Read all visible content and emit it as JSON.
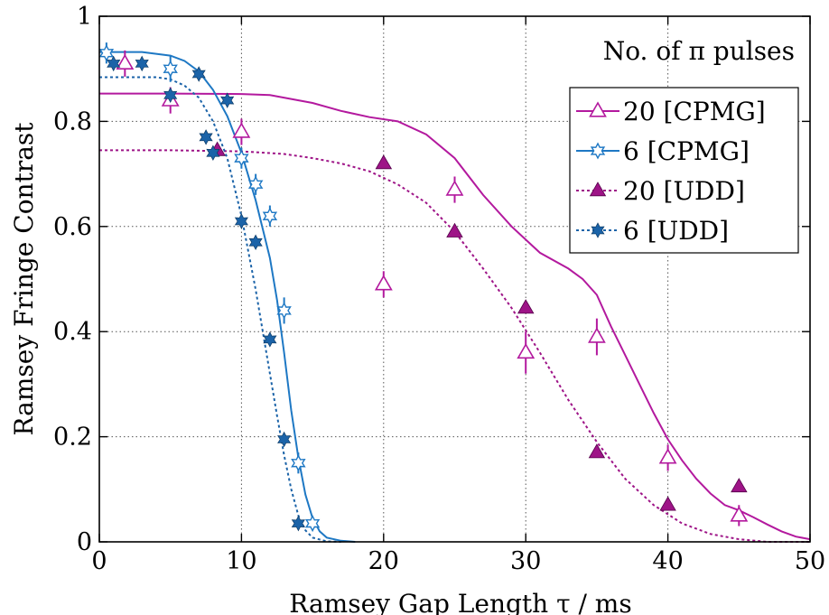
{
  "chart_data": {
    "type": "scatter",
    "xlabel": "Ramsey Gap Length τ / ms",
    "ylabel": "Ramsey Fringe Contrast",
    "xlim": [
      0,
      50
    ],
    "ylim": [
      0,
      1
    ],
    "x_ticks": [
      0,
      10,
      20,
      30,
      40,
      50
    ],
    "y_ticks": [
      0,
      0.2,
      0.4,
      0.6,
      0.8,
      1
    ],
    "x_tick_labels": [
      "0",
      "10",
      "20",
      "30",
      "40",
      "50"
    ],
    "y_tick_labels": [
      "0",
      "0.2",
      "0.4",
      "0.6",
      "0.8",
      "1"
    ],
    "grid": true,
    "legend": {
      "title": "No. of π pulses",
      "placement": "top-right"
    },
    "series": [
      {
        "name": "20 [CPMG]",
        "color": "#b3199e",
        "marker": "open-triangle",
        "line": "solid",
        "points": [
          {
            "x": 1.8,
            "y": 0.91,
            "err": 0.025
          },
          {
            "x": 5,
            "y": 0.84,
            "err": 0.025
          },
          {
            "x": 10,
            "y": 0.78,
            "err": 0.025
          },
          {
            "x": 20,
            "y": 0.49,
            "err": 0.025
          },
          {
            "x": 25,
            "y": 0.67,
            "err": 0.025
          },
          {
            "x": 30,
            "y": 0.36,
            "err": 0.04
          },
          {
            "x": 35,
            "y": 0.39,
            "err": 0.035
          },
          {
            "x": 40,
            "y": 0.16,
            "err": 0.025
          },
          {
            "x": 45,
            "y": 0.05,
            "err": 0.02
          }
        ],
        "fit": [
          [
            0,
            0.853
          ],
          [
            5,
            0.853
          ],
          [
            10,
            0.852
          ],
          [
            12,
            0.85
          ],
          [
            15,
            0.835
          ],
          [
            17,
            0.82
          ],
          [
            19,
            0.808
          ],
          [
            21,
            0.8
          ],
          [
            23,
            0.775
          ],
          [
            25,
            0.73
          ],
          [
            27,
            0.66
          ],
          [
            29,
            0.6
          ],
          [
            31,
            0.55
          ],
          [
            33,
            0.52
          ],
          [
            34,
            0.5
          ],
          [
            35,
            0.47
          ],
          [
            36,
            0.41
          ],
          [
            37,
            0.355
          ],
          [
            38,
            0.3
          ],
          [
            39,
            0.245
          ],
          [
            40,
            0.195
          ],
          [
            41,
            0.155
          ],
          [
            42,
            0.12
          ],
          [
            43,
            0.092
          ],
          [
            44,
            0.07
          ],
          [
            45,
            0.06
          ],
          [
            46,
            0.047
          ],
          [
            47,
            0.033
          ],
          [
            48,
            0.02
          ],
          [
            49,
            0.01
          ],
          [
            50,
            0.005
          ]
        ]
      },
      {
        "name": "6 [CPMG]",
        "color": "#1e78c4",
        "marker": "open-star",
        "line": "solid",
        "points": [
          {
            "x": 0.5,
            "y": 0.93,
            "err": 0.02
          },
          {
            "x": 5,
            "y": 0.9,
            "err": 0.025
          },
          {
            "x": 10,
            "y": 0.73,
            "err": 0.02
          },
          {
            "x": 11,
            "y": 0.68,
            "err": 0.02
          },
          {
            "x": 12,
            "y": 0.62,
            "err": 0.02
          },
          {
            "x": 13,
            "y": 0.44,
            "err": 0.025
          },
          {
            "x": 14,
            "y": 0.15,
            "err": 0.02
          },
          {
            "x": 15,
            "y": 0.035,
            "err": 0.01
          }
        ],
        "fit": [
          [
            0,
            0.932
          ],
          [
            3,
            0.932
          ],
          [
            5,
            0.925
          ],
          [
            6,
            0.915
          ],
          [
            7,
            0.895
          ],
          [
            8,
            0.86
          ],
          [
            9,
            0.81
          ],
          [
            10,
            0.74
          ],
          [
            11,
            0.65
          ],
          [
            12,
            0.54
          ],
          [
            12.5,
            0.46
          ],
          [
            13,
            0.36
          ],
          [
            13.5,
            0.25
          ],
          [
            14,
            0.16
          ],
          [
            14.5,
            0.09
          ],
          [
            15,
            0.045
          ],
          [
            15.5,
            0.02
          ],
          [
            16,
            0.008
          ],
          [
            17,
            0.002
          ],
          [
            18,
            0
          ]
        ]
      },
      {
        "name": "20 [UDD]",
        "color": "#9e1487",
        "marker": "filled-triangle",
        "line": "dotted",
        "points": [
          {
            "x": 8.3,
            "y": 0.745
          },
          {
            "x": 20,
            "y": 0.72
          },
          {
            "x": 25,
            "y": 0.59
          },
          {
            "x": 30,
            "y": 0.445
          },
          {
            "x": 35,
            "y": 0.17
          },
          {
            "x": 40,
            "y": 0.07
          },
          {
            "x": 45,
            "y": 0.105
          }
        ],
        "fit": [
          [
            0,
            0.745
          ],
          [
            5,
            0.745
          ],
          [
            10,
            0.743
          ],
          [
            13,
            0.738
          ],
          [
            15,
            0.73
          ],
          [
            17,
            0.72
          ],
          [
            19,
            0.705
          ],
          [
            21,
            0.68
          ],
          [
            23,
            0.645
          ],
          [
            25,
            0.59
          ],
          [
            27,
            0.52
          ],
          [
            29,
            0.445
          ],
          [
            31,
            0.36
          ],
          [
            33,
            0.27
          ],
          [
            35,
            0.19
          ],
          [
            37,
            0.12
          ],
          [
            39,
            0.07
          ],
          [
            41,
            0.035
          ],
          [
            43,
            0.015
          ],
          [
            45,
            0.005
          ],
          [
            47,
            0
          ],
          [
            50,
            0
          ]
        ]
      },
      {
        "name": "6 [UDD]",
        "color": "#1b63a8",
        "marker": "filled-star",
        "line": "dotted",
        "points": [
          {
            "x": 1,
            "y": 0.91
          },
          {
            "x": 3,
            "y": 0.91
          },
          {
            "x": 5,
            "y": 0.85
          },
          {
            "x": 7,
            "y": 0.89
          },
          {
            "x": 7.5,
            "y": 0.77
          },
          {
            "x": 8,
            "y": 0.74
          },
          {
            "x": 9,
            "y": 0.84
          },
          {
            "x": 10,
            "y": 0.61
          },
          {
            "x": 11,
            "y": 0.57
          },
          {
            "x": 12,
            "y": 0.385
          },
          {
            "x": 13,
            "y": 0.195
          },
          {
            "x": 14,
            "y": 0.035
          }
        ],
        "fit": [
          [
            0,
            0.884
          ],
          [
            4,
            0.884
          ],
          [
            5,
            0.88
          ],
          [
            6,
            0.868
          ],
          [
            7,
            0.845
          ],
          [
            8,
            0.8
          ],
          [
            9,
            0.73
          ],
          [
            10,
            0.62
          ],
          [
            11,
            0.48
          ],
          [
            12,
            0.32
          ],
          [
            12.5,
            0.24
          ],
          [
            13,
            0.165
          ],
          [
            13.5,
            0.1
          ],
          [
            14,
            0.05
          ],
          [
            14.5,
            0.022
          ],
          [
            15,
            0.008
          ],
          [
            16,
            0.001
          ],
          [
            17,
            0
          ]
        ]
      }
    ]
  }
}
